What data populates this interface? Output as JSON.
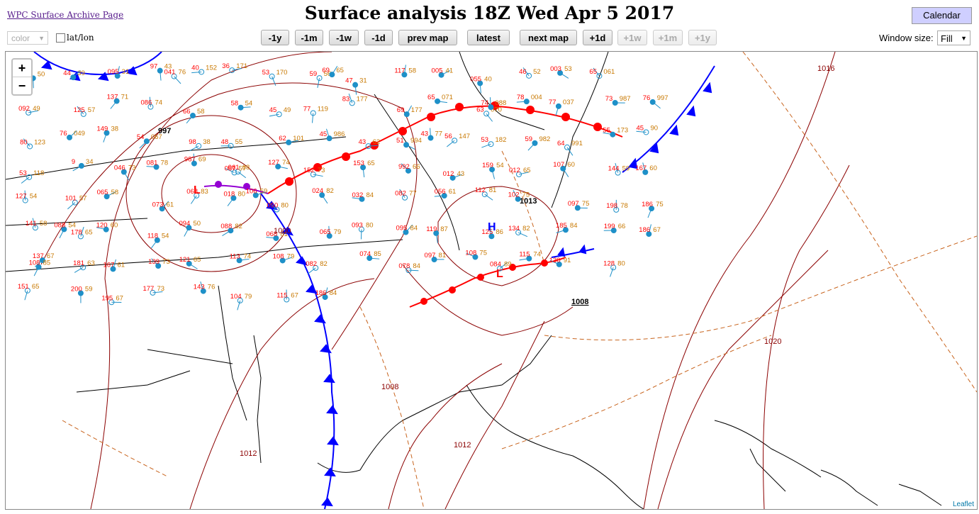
{
  "header": {
    "archive_link": "WPC Surface Archive Page",
    "title": "Surface analysis 18Z Wed Apr 5 2017",
    "calendar": "Calendar"
  },
  "controls": {
    "color_select": "color",
    "latlon_label": "lat/lon",
    "window_size_label": "Window size:",
    "window_size_value": "Fill"
  },
  "nav": {
    "minus_1y": "-1y",
    "minus_1m": "-1m",
    "minus_1w": "-1w",
    "minus_1d": "-1d",
    "prev_map": "prev map",
    "latest": "latest",
    "next_map": "next map",
    "plus_1d": "+1d",
    "plus_1w": "+1w",
    "plus_1m": "+1m",
    "plus_1y": "+1y"
  },
  "map": {
    "zoom_in": "+",
    "zoom_out": "−",
    "attribution": "Leaflet",
    "pressure_centers": [
      {
        "type": "L",
        "value": "997"
      },
      {
        "type": "L",
        "value": ""
      },
      {
        "type": "H",
        "value": "1013"
      },
      {
        "type": "L",
        "value": "1008"
      }
    ],
    "isobar_labels": [
      "1016",
      "1020",
      "1012",
      "1008",
      "1000",
      "1012"
    ],
    "colors": {
      "isobar": "#8b0000",
      "cold_front": "#0000ff",
      "warm_front": "#ff0000",
      "trough": "#c8641e",
      "station_temp": "#ff0000",
      "station_dew": "#008000",
      "station_pressure": "#c87800",
      "station_circle": "#1e90c8"
    },
    "station_labels": [
      "55",
      "50",
      "44",
      "39",
      "095",
      "31",
      "97",
      "43",
      "40",
      "152",
      "36",
      "171",
      "53",
      "170",
      "59",
      "56",
      "47",
      "31",
      "117",
      "58",
      "005",
      "41",
      "055",
      "40",
      "46",
      "52",
      "003",
      "53",
      "65",
      "061",
      "69",
      "65",
      "041",
      "76",
      "092",
      "49",
      "125",
      "57",
      "137",
      "71",
      "086",
      "74",
      "66",
      "58",
      "58",
      "54",
      "45",
      "49",
      "77",
      "119",
      "83",
      "177",
      "69",
      "177",
      "65",
      "071",
      "63",
      "070",
      "78",
      "004",
      "77",
      "037",
      "73",
      "987",
      "76",
      "997",
      "74",
      "088",
      "80",
      "123",
      "76",
      "049",
      "149",
      "38",
      "54",
      "067",
      "98",
      "38",
      "48",
      "55",
      "62",
      "101",
      "45",
      "986",
      "43",
      "62",
      "51",
      "994",
      "56",
      "147",
      "53",
      "182",
      "59",
      "982",
      "64",
      "991",
      "55",
      "173",
      "45",
      "90",
      "43",
      "77",
      "53",
      "118",
      "9",
      "34",
      "046",
      "73",
      "081",
      "78",
      "987",
      "69",
      "061",
      "68",
      "127",
      "74",
      "152",
      "73",
      "153",
      "65",
      "992",
      "66",
      "012",
      "43",
      "159",
      "54",
      "012",
      "65",
      "107",
      "60",
      "144",
      "59",
      "167",
      "60",
      "087",
      "57",
      "127",
      "54",
      "101",
      "57",
      "065",
      "58",
      "073",
      "61",
      "068",
      "83",
      "018",
      "80",
      "050",
      "80",
      "024",
      "82",
      "032",
      "84",
      "082",
      "77",
      "056",
      "61",
      "112",
      "81",
      "102",
      "75",
      "097",
      "75",
      "198",
      "78",
      "186",
      "75",
      "106",
      "59",
      "141",
      "58",
      "088",
      "54",
      "120",
      "60",
      "118",
      "54",
      "094",
      "50",
      "088",
      "82",
      "068",
      "81",
      "065",
      "79",
      "093",
      "80",
      "095",
      "84",
      "119",
      "87",
      "125",
      "86",
      "134",
      "82",
      "185",
      "84",
      "199",
      "66",
      "186",
      "67",
      "178",
      "65",
      "137",
      "67",
      "181",
      "63",
      "167",
      "61",
      "139",
      "73",
      "121",
      "65",
      "113",
      "74",
      "108",
      "79",
      "082",
      "82",
      "074",
      "85",
      "078",
      "84",
      "097",
      "81",
      "108",
      "75",
      "115",
      "74",
      "130",
      "91",
      "128",
      "80",
      "108",
      "85",
      "084",
      "89",
      "151",
      "65",
      "200",
      "59",
      "195",
      "67",
      "177",
      "73",
      "143",
      "76",
      "104",
      "79",
      "115",
      "67",
      "186",
      "84",
      "199"
    ]
  }
}
